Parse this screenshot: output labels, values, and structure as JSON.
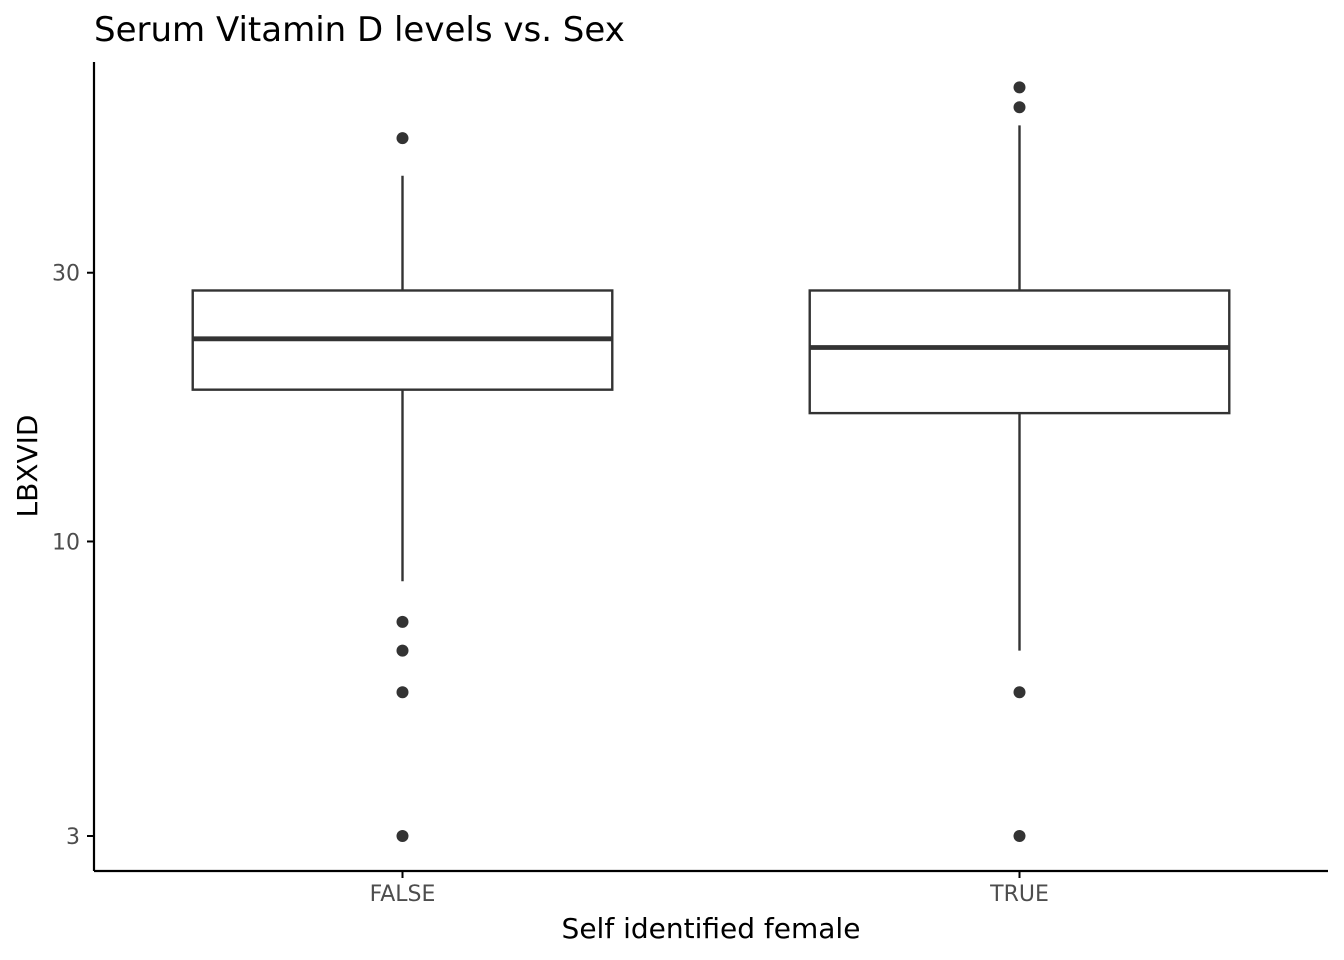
{
  "chart_data": {
    "type": "box",
    "title": "Serum Vitamin D levels vs. Sex",
    "xlabel": "Self identified female",
    "ylabel": "LBXVID",
    "categories": [
      "FALSE",
      "TRUE"
    ],
    "y_scale": "log10",
    "ylim": [
      2.6,
      71
    ],
    "y_ticks": [
      3,
      10,
      30
    ],
    "y_tick_labels": [
      "3",
      "10",
      "30"
    ],
    "grid": false,
    "legend": "none",
    "boxes": [
      {
        "category": "FALSE",
        "whisker_low": 8.5,
        "q1": 18.6,
        "median": 22.9,
        "q3": 27.9,
        "whisker_high": 44.6,
        "outliers": [
          52,
          7.2,
          6.4,
          5.4,
          3.0
        ]
      },
      {
        "category": "TRUE",
        "whisker_low": 6.4,
        "q1": 16.9,
        "median": 22.1,
        "q3": 27.9,
        "whisker_high": 54.8,
        "outliers": [
          64,
          59,
          5.4,
          3.0
        ]
      }
    ],
    "colors": {
      "box_line": "#333333",
      "outlier": "#333333",
      "axis": "#000000",
      "tick_label": "#4d4d4d"
    }
  }
}
